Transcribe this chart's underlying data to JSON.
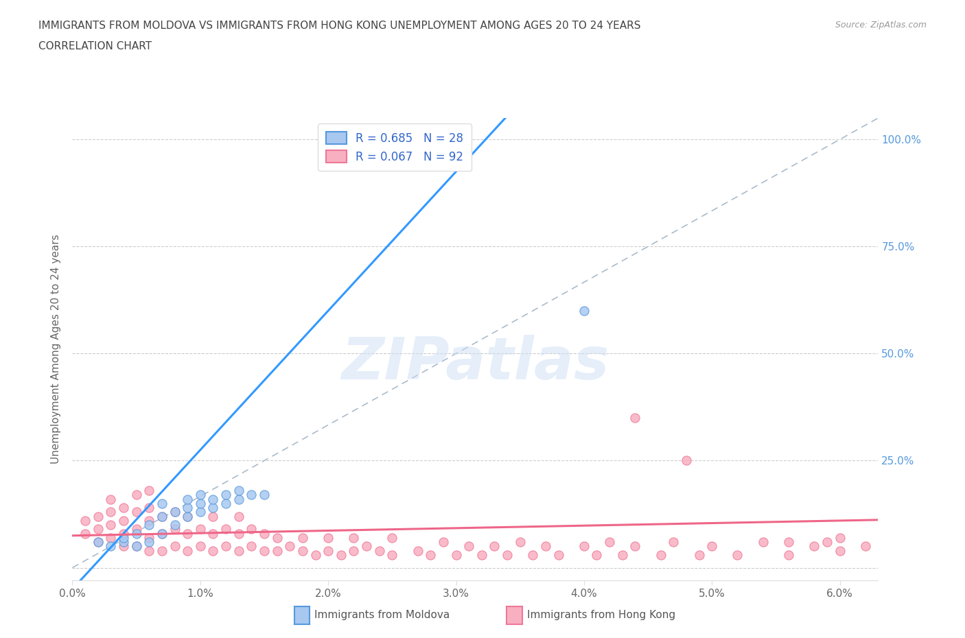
{
  "title_line1": "IMMIGRANTS FROM MOLDOVA VS IMMIGRANTS FROM HONG KONG UNEMPLOYMENT AMONG AGES 20 TO 24 YEARS",
  "title_line2": "CORRELATION CHART",
  "source": "Source: ZipAtlas.com",
  "ylabel": "Unemployment Among Ages 20 to 24 years",
  "xlim": [
    0.0,
    0.063
  ],
  "ylim": [
    -0.03,
    1.05
  ],
  "xtick_labels": [
    "0.0%",
    "1.0%",
    "2.0%",
    "3.0%",
    "4.0%",
    "5.0%",
    "6.0%"
  ],
  "xtick_vals": [
    0.0,
    0.01,
    0.02,
    0.03,
    0.04,
    0.05,
    0.06
  ],
  "ytick_vals": [
    0.0,
    0.25,
    0.5,
    0.75,
    1.0
  ],
  "right_tick_labels": [
    "",
    "25.0%",
    "50.0%",
    "75.0%",
    "100.0%"
  ],
  "moldova_color": "#a8c8f0",
  "moldova_edge": "#5599dd",
  "hong_kong_color": "#f8b0c0",
  "hong_kong_edge": "#ee7799",
  "moldova_line_color": "#3399ff",
  "hong_kong_line_color": "#ee6688",
  "diag_line_color": "#aabbcc",
  "legend_text_color": "#3366cc",
  "moldova_R": 0.685,
  "moldova_N": 28,
  "hong_kong_R": 0.067,
  "hong_kong_N": 92,
  "watermark": "ZIPatlas",
  "moldova_line_x0": 0.0,
  "moldova_line_y0": -0.05,
  "moldova_line_x1": 0.02,
  "moldova_line_y1": 0.6,
  "hk_line_x0": 0.0,
  "hk_line_y0": 0.075,
  "hk_line_x1": 0.06,
  "hk_line_y1": 0.11,
  "moldova_scatter_x": [
    0.002,
    0.003,
    0.004,
    0.004,
    0.005,
    0.005,
    0.006,
    0.006,
    0.007,
    0.007,
    0.007,
    0.008,
    0.008,
    0.009,
    0.009,
    0.009,
    0.01,
    0.01,
    0.01,
    0.011,
    0.011,
    0.012,
    0.012,
    0.013,
    0.013,
    0.014,
    0.015,
    0.04
  ],
  "moldova_scatter_y": [
    0.06,
    0.05,
    0.06,
    0.07,
    0.05,
    0.08,
    0.06,
    0.1,
    0.08,
    0.12,
    0.15,
    0.1,
    0.13,
    0.12,
    0.14,
    0.16,
    0.13,
    0.15,
    0.17,
    0.14,
    0.16,
    0.15,
    0.17,
    0.16,
    0.18,
    0.17,
    0.17,
    0.6
  ],
  "hk_scatter_x": [
    0.001,
    0.001,
    0.002,
    0.002,
    0.002,
    0.003,
    0.003,
    0.003,
    0.003,
    0.004,
    0.004,
    0.004,
    0.004,
    0.005,
    0.005,
    0.005,
    0.005,
    0.006,
    0.006,
    0.006,
    0.006,
    0.006,
    0.007,
    0.007,
    0.007,
    0.008,
    0.008,
    0.008,
    0.009,
    0.009,
    0.009,
    0.01,
    0.01,
    0.011,
    0.011,
    0.011,
    0.012,
    0.012,
    0.013,
    0.013,
    0.013,
    0.014,
    0.014,
    0.015,
    0.015,
    0.016,
    0.016,
    0.017,
    0.018,
    0.018,
    0.019,
    0.02,
    0.02,
    0.021,
    0.022,
    0.022,
    0.023,
    0.024,
    0.025,
    0.025,
    0.027,
    0.028,
    0.029,
    0.03,
    0.031,
    0.032,
    0.033,
    0.034,
    0.035,
    0.036,
    0.037,
    0.038,
    0.04,
    0.041,
    0.042,
    0.043,
    0.044,
    0.046,
    0.047,
    0.049,
    0.05,
    0.052,
    0.054,
    0.056,
    0.044,
    0.048,
    0.056,
    0.058,
    0.059,
    0.06,
    0.06,
    0.062
  ],
  "hk_scatter_y": [
    0.08,
    0.11,
    0.06,
    0.09,
    0.12,
    0.07,
    0.1,
    0.13,
    0.16,
    0.05,
    0.08,
    0.11,
    0.14,
    0.05,
    0.09,
    0.13,
    0.17,
    0.04,
    0.07,
    0.11,
    0.14,
    0.18,
    0.04,
    0.08,
    0.12,
    0.05,
    0.09,
    0.13,
    0.04,
    0.08,
    0.12,
    0.05,
    0.09,
    0.04,
    0.08,
    0.12,
    0.05,
    0.09,
    0.04,
    0.08,
    0.12,
    0.05,
    0.09,
    0.04,
    0.08,
    0.04,
    0.07,
    0.05,
    0.04,
    0.07,
    0.03,
    0.04,
    0.07,
    0.03,
    0.04,
    0.07,
    0.05,
    0.04,
    0.03,
    0.07,
    0.04,
    0.03,
    0.06,
    0.03,
    0.05,
    0.03,
    0.05,
    0.03,
    0.06,
    0.03,
    0.05,
    0.03,
    0.05,
    0.03,
    0.06,
    0.03,
    0.05,
    0.03,
    0.06,
    0.03,
    0.05,
    0.03,
    0.06,
    0.03,
    0.35,
    0.25,
    0.06,
    0.05,
    0.06,
    0.07,
    0.04,
    0.05
  ]
}
